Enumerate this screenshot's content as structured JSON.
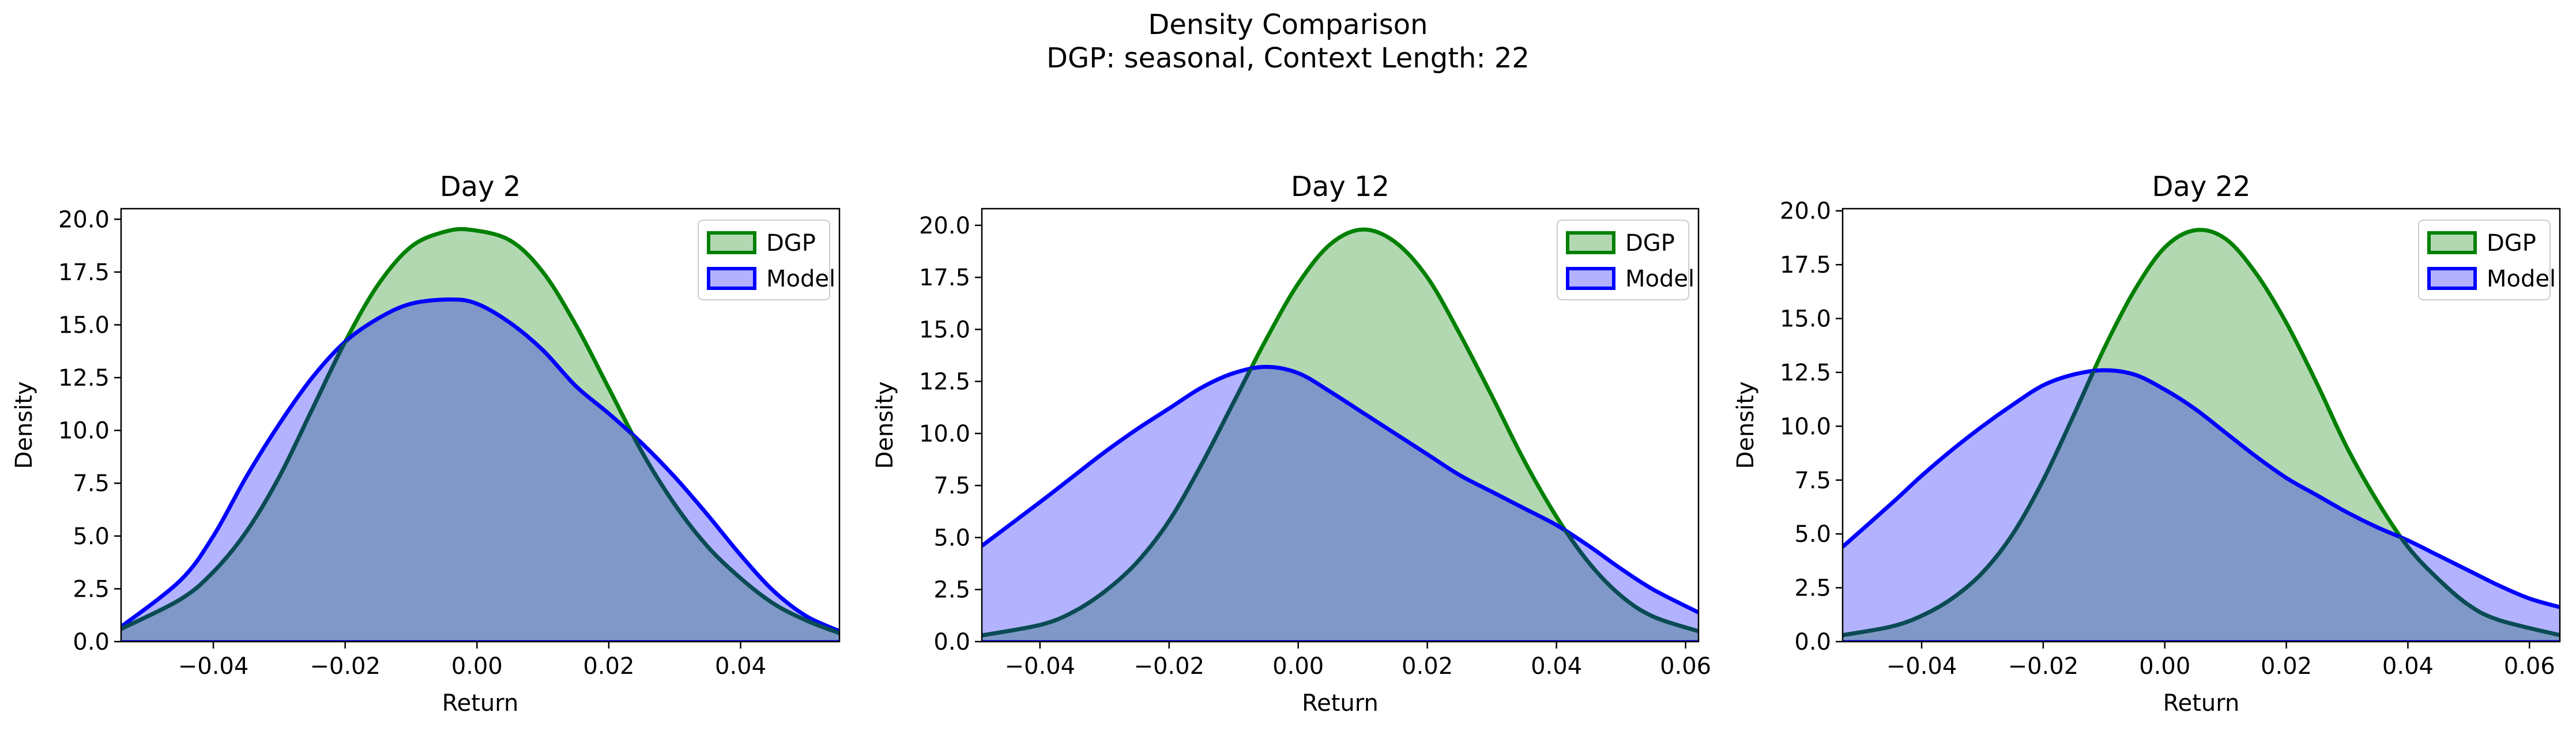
{
  "figure": {
    "title": "Density Comparison",
    "subtitle": "DGP: seasonal, Context Length: 22"
  },
  "colors": {
    "dgp_line": "#008000",
    "dgp_fill": "#b2d8b2",
    "model_line": "#0000ff",
    "model_fill": "#b2b2ff",
    "overlap_fill": "#7f98c7",
    "overlap_line": "#0a4b55"
  },
  "chart_data": [
    {
      "type": "area",
      "title": "Day 2",
      "xlabel": "Return",
      "ylabel": "Density",
      "xlim": [
        -0.054,
        0.055
      ],
      "ylim": [
        0,
        20.5
      ],
      "xticks": [
        -0.04,
        -0.02,
        0.0,
        0.02,
        0.04
      ],
      "xtick_labels": [
        "−0.04",
        "−0.02",
        "0.00",
        "0.02",
        "0.04"
      ],
      "yticks": [
        0,
        2.5,
        5,
        7.5,
        10,
        12.5,
        15,
        17.5,
        20
      ],
      "ytick_labels": [
        "0.0",
        "2.5",
        "5.0",
        "7.5",
        "10.0",
        "12.5",
        "15.0",
        "17.5",
        "20.0"
      ],
      "legend_position": "top-right",
      "grid": false,
      "series": [
        {
          "name": "DGP",
          "x": [
            -0.054,
            -0.045,
            -0.04,
            -0.035,
            -0.03,
            -0.025,
            -0.02,
            -0.015,
            -0.01,
            -0.005,
            -0.001,
            0.005,
            0.01,
            0.015,
            0.02,
            0.025,
            0.03,
            0.035,
            0.04,
            0.045,
            0.05,
            0.055
          ],
          "y": [
            0.6,
            2.0,
            3.3,
            5.2,
            7.8,
            11.0,
            14.2,
            16.9,
            18.7,
            19.4,
            19.5,
            19.0,
            17.5,
            15.0,
            12.0,
            9.0,
            6.5,
            4.5,
            3.0,
            1.8,
            1.0,
            0.4
          ]
        },
        {
          "name": "Model",
          "x": [
            -0.054,
            -0.045,
            -0.04,
            -0.035,
            -0.03,
            -0.025,
            -0.02,
            -0.015,
            -0.01,
            -0.004,
            0.0,
            0.005,
            0.01,
            0.015,
            0.02,
            0.025,
            0.03,
            0.035,
            0.04,
            0.045,
            0.05,
            0.055
          ],
          "y": [
            0.7,
            2.9,
            5.0,
            7.8,
            10.3,
            12.5,
            14.2,
            15.3,
            16.0,
            16.2,
            16.0,
            15.1,
            13.8,
            12.1,
            10.8,
            9.4,
            7.8,
            6.0,
            4.1,
            2.4,
            1.2,
            0.5
          ]
        }
      ]
    },
    {
      "type": "area",
      "title": "Day 12",
      "xlabel": "Return",
      "ylabel": "Density",
      "xlim": [
        -0.049,
        0.062
      ],
      "ylim": [
        0,
        20.8
      ],
      "xticks": [
        -0.04,
        -0.02,
        0.0,
        0.02,
        0.04,
        0.06
      ],
      "xtick_labels": [
        "−0.04",
        "−0.02",
        "0.00",
        "0.02",
        "0.04",
        "0.06"
      ],
      "yticks": [
        0,
        2.5,
        5,
        7.5,
        10,
        12.5,
        15,
        17.5,
        20
      ],
      "ytick_labels": [
        "0.0",
        "2.5",
        "5.0",
        "7.5",
        "10.0",
        "12.5",
        "15.0",
        "17.5",
        "20.0"
      ],
      "legend_position": "top-right",
      "grid": false,
      "series": [
        {
          "name": "DGP",
          "x": [
            -0.049,
            -0.04,
            -0.035,
            -0.03,
            -0.025,
            -0.02,
            -0.015,
            -0.01,
            -0.005,
            0.0,
            0.005,
            0.01,
            0.015,
            0.02,
            0.025,
            0.03,
            0.035,
            0.04,
            0.045,
            0.05,
            0.055,
            0.062
          ],
          "y": [
            0.3,
            0.8,
            1.4,
            2.4,
            3.8,
            5.8,
            8.5,
            11.5,
            14.5,
            17.2,
            19.1,
            19.8,
            19.2,
            17.5,
            14.8,
            11.8,
            8.7,
            6.0,
            3.8,
            2.2,
            1.2,
            0.5
          ]
        },
        {
          "name": "Model",
          "x": [
            -0.049,
            -0.04,
            -0.035,
            -0.03,
            -0.025,
            -0.02,
            -0.015,
            -0.01,
            -0.005,
            0.0,
            0.005,
            0.01,
            0.015,
            0.02,
            0.025,
            0.03,
            0.035,
            0.04,
            0.045,
            0.05,
            0.055,
            0.062
          ],
          "y": [
            4.6,
            6.7,
            7.9,
            9.1,
            10.2,
            11.2,
            12.2,
            12.9,
            13.2,
            12.9,
            12.0,
            11.0,
            10.0,
            9.0,
            8.0,
            7.2,
            6.4,
            5.6,
            4.6,
            3.5,
            2.5,
            1.4
          ]
        }
      ]
    },
    {
      "type": "area",
      "title": "Day 22",
      "xlabel": "Return",
      "ylabel": "Density",
      "xlim": [
        -0.053,
        0.065
      ],
      "ylim": [
        0,
        20.1
      ],
      "xticks": [
        -0.04,
        -0.02,
        0.0,
        0.02,
        0.04,
        0.06
      ],
      "xtick_labels": [
        "−0.04",
        "−0.02",
        "0.00",
        "0.02",
        "0.04",
        "0.06"
      ],
      "yticks": [
        0,
        2.5,
        5,
        7.5,
        10,
        12.5,
        15,
        17.5,
        20
      ],
      "ytick_labels": [
        "0.0",
        "2.5",
        "5.0",
        "7.5",
        "10.0",
        "12.5",
        "15.0",
        "17.5",
        "20.0"
      ],
      "legend_position": "top-right",
      "grid": false,
      "series": [
        {
          "name": "DGP",
          "x": [
            -0.053,
            -0.045,
            -0.04,
            -0.035,
            -0.03,
            -0.025,
            -0.02,
            -0.015,
            -0.01,
            -0.005,
            0.0,
            0.005,
            0.01,
            0.015,
            0.02,
            0.025,
            0.03,
            0.035,
            0.04,
            0.045,
            0.05,
            0.055,
            0.065
          ],
          "y": [
            0.3,
            0.7,
            1.2,
            2.0,
            3.2,
            5.0,
            7.5,
            10.5,
            13.6,
            16.3,
            18.3,
            19.1,
            18.7,
            17.1,
            14.8,
            12.0,
            9.0,
            6.5,
            4.4,
            2.9,
            1.7,
            1.0,
            0.3
          ]
        },
        {
          "name": "Model",
          "x": [
            -0.053,
            -0.045,
            -0.04,
            -0.035,
            -0.03,
            -0.025,
            -0.02,
            -0.015,
            -0.01,
            -0.005,
            0.0,
            0.005,
            0.01,
            0.015,
            0.02,
            0.025,
            0.03,
            0.035,
            0.04,
            0.045,
            0.05,
            0.055,
            0.06,
            0.065
          ],
          "y": [
            4.4,
            6.4,
            7.7,
            8.9,
            10.0,
            11.0,
            11.9,
            12.4,
            12.6,
            12.4,
            11.7,
            10.8,
            9.7,
            8.6,
            7.6,
            6.8,
            6.0,
            5.3,
            4.7,
            4.0,
            3.3,
            2.6,
            2.0,
            1.6
          ]
        }
      ]
    }
  ]
}
